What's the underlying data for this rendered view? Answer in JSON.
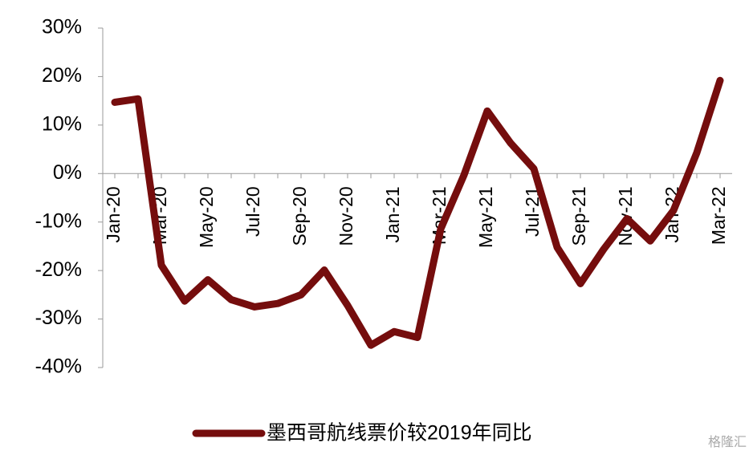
{
  "chart_data": {
    "type": "line",
    "categories": [
      "Jan-20",
      null,
      "Mar-20",
      null,
      "May-20",
      null,
      "Jul-20",
      null,
      "Sep-20",
      null,
      "Nov-20",
      null,
      "Jan-21",
      null,
      "Mar-21",
      null,
      "May-21",
      null,
      "Jul-21",
      null,
      "Sep-21",
      null,
      "Nov-21",
      null,
      "Jan-22",
      null,
      "Mar-22"
    ],
    "series": [
      {
        "name": "墨西哥航线票价较2019年同比",
        "color": "#750d0d",
        "values": [
          14.7,
          15.4,
          -18.9,
          -26.3,
          -21.9,
          -26,
          -27.5,
          -26.8,
          -25,
          -19.9,
          -27.2,
          -35.4,
          -32.6,
          -33.8,
          -11.4,
          -0.3,
          12.9,
          6.3,
          1,
          -15.2,
          -22.7,
          -15.6,
          -9.3,
          -13.9,
          -7.6,
          4.3,
          19.2
        ]
      }
    ],
    "ylim": [
      -40,
      30
    ],
    "yticks": [
      {
        "value": -40,
        "label": "-40%"
      },
      {
        "value": -30,
        "label": "-30%"
      },
      {
        "value": -20,
        "label": "-20%"
      },
      {
        "value": -10,
        "label": "-10%"
      },
      {
        "value": 0,
        "label": "0%"
      },
      {
        "value": 10,
        "label": "10%"
      },
      {
        "value": 20,
        "label": "20%"
      },
      {
        "value": 30,
        "label": "30%"
      }
    ],
    "legend": "bottom",
    "watermark": "格隆汇"
  }
}
